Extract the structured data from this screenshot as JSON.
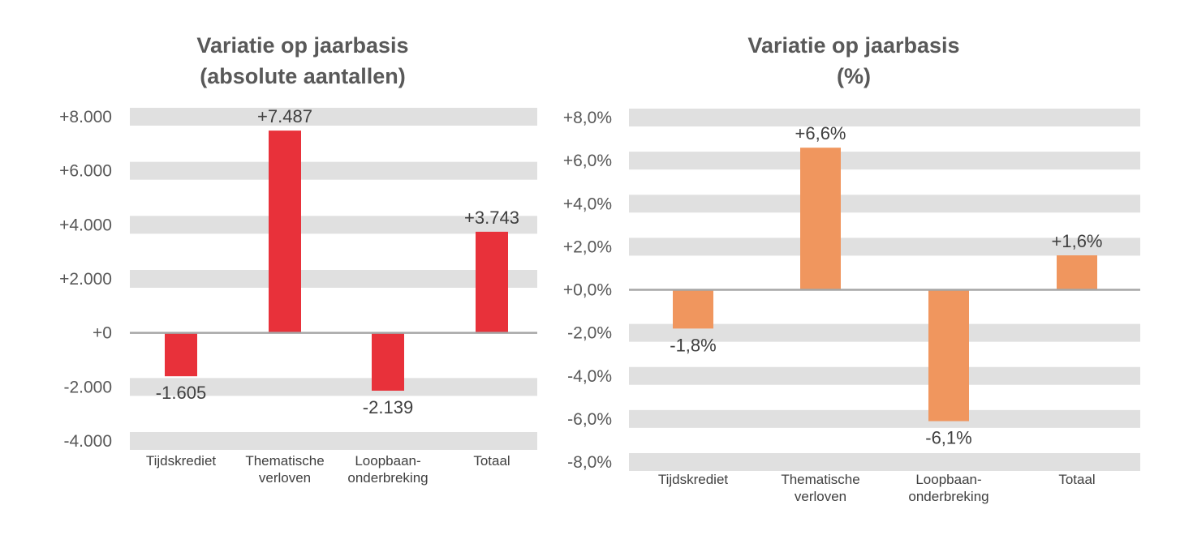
{
  "colors": {
    "band": "#E0E0E0",
    "zero_line": "#A6A6A6"
  },
  "chart_data": [
    {
      "type": "bar",
      "title": [
        "Variatie op jaarbasis",
        "(absolute aantallen)"
      ],
      "categories": [
        [
          "Tijdskrediet"
        ],
        [
          "Thematische",
          "verloven"
        ],
        [
          "Loopbaan-",
          "onderbreking"
        ],
        [
          "Totaal"
        ]
      ],
      "values": [
        -1605,
        7487,
        -2139,
        3743
      ],
      "data_labels": [
        "-1.605",
        "+7.487",
        "-2.139",
        "+3.743"
      ],
      "ylim": [
        -4000,
        8000
      ],
      "yticks": [
        8000,
        6000,
        4000,
        2000,
        0,
        -2000,
        -4000
      ],
      "ytick_labels": [
        "+8.000",
        "+6.000",
        "+4.000",
        "+2.000",
        "+0",
        "-2.000",
        "-4.000"
      ],
      "color": "#E8313A",
      "grid": "bands"
    },
    {
      "type": "bar",
      "title": [
        "Variatie op jaarbasis",
        "(%)"
      ],
      "categories": [
        [
          "Tijdskrediet"
        ],
        [
          "Thematische",
          "verloven"
        ],
        [
          "Loopbaan-",
          "onderbreking"
        ],
        [
          "Totaal"
        ]
      ],
      "values": [
        -1.8,
        6.6,
        -6.1,
        1.6
      ],
      "data_labels": [
        "-1,8%",
        "+6,6%",
        "-6,1%",
        "+1,6%"
      ],
      "ylim": [
        -8,
        8
      ],
      "yticks": [
        8,
        6,
        4,
        2,
        0,
        -2,
        -4,
        -6,
        -8
      ],
      "ytick_labels": [
        "+8,0%",
        "+6,0%",
        "+4,0%",
        "+2,0%",
        "+0,0%",
        "-2,0%",
        "-4,0%",
        "-6,0%",
        "-8,0%"
      ],
      "color": "#F0965E",
      "grid": "bands"
    }
  ]
}
